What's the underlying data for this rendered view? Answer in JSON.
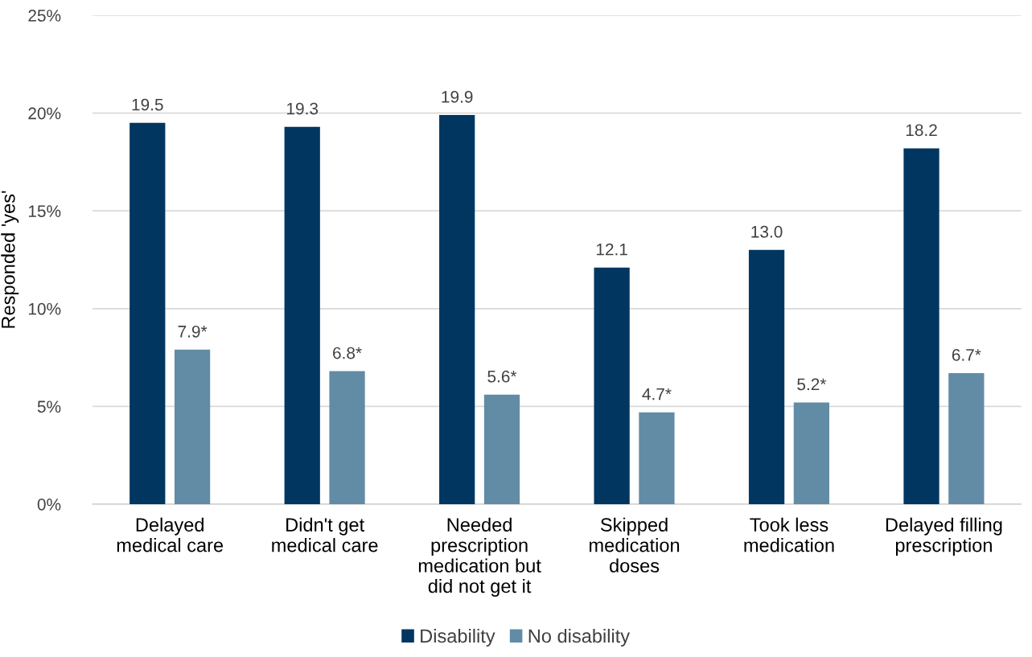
{
  "chart_data": {
    "type": "bar",
    "ylabel": "Responded 'yes'",
    "categories": [
      "Delayed\nmedical care",
      "Didn't get\nmedical care",
      "Needed\nprescription\nmedication but\ndid not get it",
      "Skipped\nmedication\ndoses",
      "Took less\nmedication",
      "Delayed filling\nprescription"
    ],
    "series": [
      {
        "name": "Disability",
        "color": "#003660",
        "values": [
          19.5,
          19.3,
          19.9,
          12.1,
          13.0,
          18.2
        ],
        "value_labels": [
          "19.5",
          "19.3",
          "19.9",
          "12.1",
          "13.0",
          "18.2"
        ]
      },
      {
        "name": "No disability",
        "color": "#628ca5",
        "values": [
          7.9,
          6.8,
          5.6,
          4.7,
          5.2,
          6.7
        ],
        "value_labels": [
          "7.9*",
          "6.8*",
          "5.6*",
          "4.7*",
          "5.2*",
          "6.7*"
        ]
      }
    ],
    "ylim": [
      0,
      25
    ],
    "yticks": [
      {
        "value": 0,
        "label": "0%"
      },
      {
        "value": 5,
        "label": "5%"
      },
      {
        "value": 10,
        "label": "10%"
      },
      {
        "value": 15,
        "label": "15%"
      },
      {
        "value": 20,
        "label": "20%"
      },
      {
        "value": 25,
        "label": "25%"
      }
    ],
    "grid": "y",
    "legend": "bottom"
  }
}
